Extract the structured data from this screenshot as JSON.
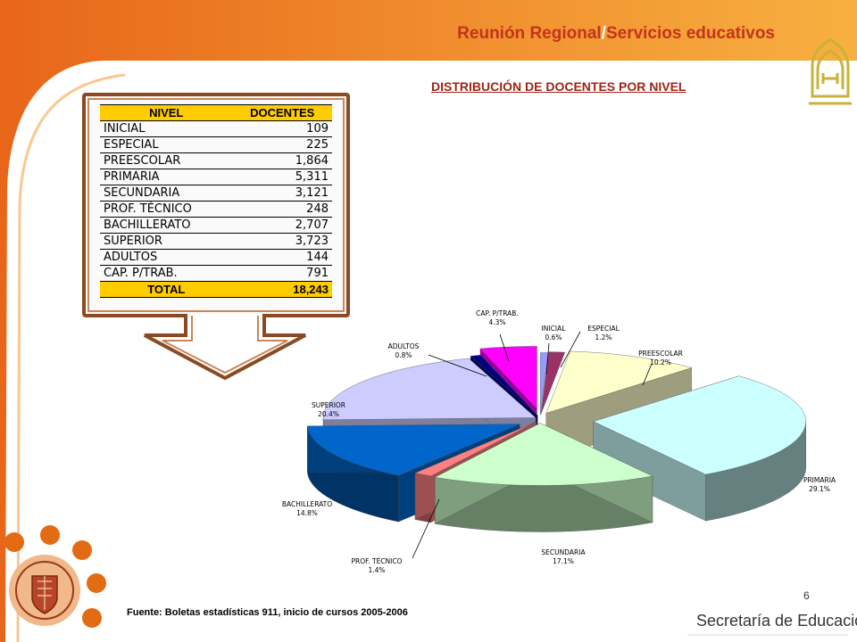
{
  "header": {
    "title_part1": "Reunión Regional",
    "title_sep": "/",
    "title_part2": "Servicios educativos"
  },
  "slide_title": "DISTRIBUCIÓN DE DOCENTES POR NIVEL",
  "table": {
    "headers": [
      "NIVEL",
      "DOCENTES"
    ],
    "rows": [
      [
        "INICIAL",
        "109"
      ],
      [
        "ESPECIAL",
        "225"
      ],
      [
        "PREESCOLAR",
        "1,864"
      ],
      [
        "PRIMARIA",
        "5,311"
      ],
      [
        "SECUNDARIA",
        "3,121"
      ],
      [
        "PROF. TÉCNICO",
        "248"
      ],
      [
        "BACHILLERATO",
        "2,707"
      ],
      [
        "SUPERIOR",
        "3,723"
      ],
      [
        "ADULTOS",
        "144"
      ],
      [
        "CAP. P/TRAB.",
        "791"
      ]
    ],
    "total": [
      "TOTAL",
      "18,243"
    ]
  },
  "chart_data": {
    "type": "pie",
    "title": "",
    "slices": [
      {
        "label": "INICIAL",
        "percent": "0.6%",
        "value": 0.6,
        "color": "#9999ff"
      },
      {
        "label": "ESPECIAL",
        "percent": "1.2%",
        "value": 1.2,
        "color": "#993366"
      },
      {
        "label": "PREESCOLAR",
        "percent": "10.2%",
        "value": 10.2,
        "color": "#ffffcc"
      },
      {
        "label": "PRIMARIA",
        "percent": "29.1%",
        "value": 29.1,
        "color": "#ccffff"
      },
      {
        "label": "SECUNDARIA",
        "percent": "17.1%",
        "value": 17.1,
        "color": "#ccffcc"
      },
      {
        "label": "PROF. TÉCNICO",
        "percent": "1.4%",
        "value": 1.4,
        "color": "#ff8080"
      },
      {
        "label": "BACHILLERATO",
        "percent": "14.8%",
        "value": 14.8,
        "color": "#0066cc"
      },
      {
        "label": "SUPERIOR",
        "percent": "20.4%",
        "value": 20.4,
        "color": "#ccccff"
      },
      {
        "label": "ADULTOS",
        "percent": "0.8%",
        "value": 0.8,
        "color": "#000080"
      },
      {
        "label": "CAP. P/TRAB.",
        "percent": "4.3%",
        "value": 4.3,
        "color": "#ff00ff"
      }
    ]
  },
  "footer": {
    "source": "Fuente: Boletas estadísticas  911, inicio de cursos 2005-2006",
    "page_number": "6",
    "secretaria": "Secretaría de Educación"
  }
}
